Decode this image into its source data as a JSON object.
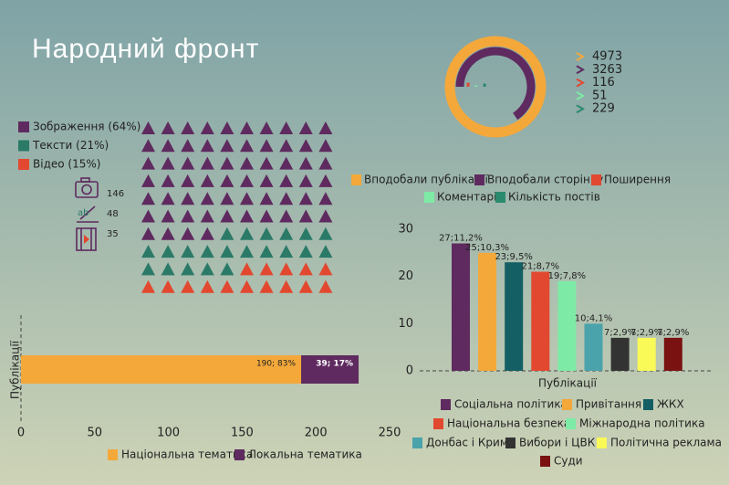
{
  "title": "Народний фронт",
  "chart_data": [
    {
      "type": "waffle",
      "categories": [
        "Зображення (64%)",
        "Тексти (21%)",
        "Відео (15%)"
      ],
      "values": [
        64,
        21,
        15
      ],
      "colors": [
        "#5e2a5f",
        "#2b7a68",
        "#e2482f"
      ],
      "counts": [
        146,
        48,
        35
      ]
    },
    {
      "type": "radial_bar",
      "categories": [
        "Вподобали публікації",
        "Вподобали сторінку",
        "Поширення",
        "Коментарі",
        "Кількість постів"
      ],
      "values": [
        4973,
        3263,
        116,
        51,
        229
      ],
      "colors": [
        "#f4a83a",
        "#5e2a5f",
        "#e2482f",
        "#7deba6",
        "#2b8a6e"
      ]
    },
    {
      "type": "stacked_bar",
      "ylabel": "Публікації",
      "series": [
        {
          "name": "Національна тематика",
          "color": "#f4a83a",
          "values": [
            190
          ],
          "value_labels": [
            "190; 83%"
          ]
        },
        {
          "name": "Локальна тематика",
          "color": "#5e2a5f",
          "values": [
            39
          ],
          "value_labels": [
            "39; 17%"
          ]
        }
      ],
      "xlim": [
        0,
        250
      ],
      "xticks": [
        0,
        50,
        100,
        150,
        200,
        250
      ]
    },
    {
      "type": "bar",
      "xlabel": "Публікації",
      "categories": [
        "Соціальна політика",
        "Привітання",
        "ЖКХ",
        "Національна безпека",
        "Міжнародна політика",
        "Донбас і Крим",
        "Вибори і ЦВК",
        "Політична реклама",
        "Суди"
      ],
      "values": [
        27,
        25,
        23,
        21,
        19,
        10,
        7,
        7,
        7
      ],
      "value_labels": [
        "27;11,2%",
        "25;10,3%",
        "23;9,5%",
        "21;8,7%",
        "19;7,8%",
        "10;4,1%",
        "7;2,9%",
        "7;2,9%",
        "7;2,9%"
      ],
      "colors": [
        "#5e2a5f",
        "#f4a83a",
        "#135f63",
        "#e2482f",
        "#7deba6",
        "#4aa3ab",
        "#333333",
        "#f9f957",
        "#7a1212"
      ],
      "ylim": [
        0,
        30
      ],
      "yticks": [
        0,
        10,
        20,
        30
      ]
    }
  ]
}
